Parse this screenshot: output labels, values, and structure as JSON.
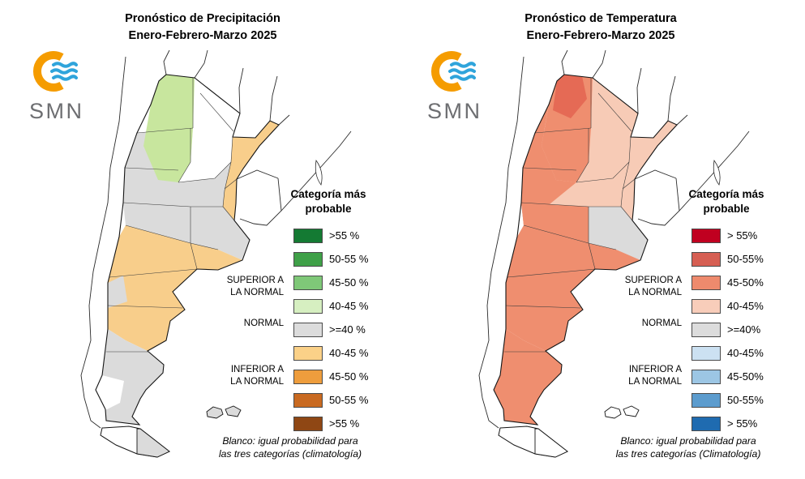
{
  "logo": {
    "text": "SMN",
    "orange": "#F59C00",
    "blue": "#2FA4DB",
    "gray": "#6D6E71"
  },
  "panels": [
    {
      "id": "precipitation",
      "title_line1": "Pronóstico de Precipitación",
      "title_line2": "Enero-Febrero-Marzo 2025",
      "legend": {
        "title_line1": "Categoría más",
        "title_line2": "probable",
        "superior": "SUPERIOR A\nLA NORMAL",
        "normal": "NORMAL",
        "inferior": "INFERIOR A\nLA NORMAL",
        "items": [
          {
            "label": ">55 %",
            "color": "#147A33"
          },
          {
            "label": "50-55 %",
            "color": "#3FA048"
          },
          {
            "label": "45-50 %",
            "color": "#7FC878"
          },
          {
            "label": "40-45 %",
            "color": "#D6EFC1"
          },
          {
            "label": ">=40 %",
            "color": "#DCDCDC"
          },
          {
            "label": "40-45 %",
            "color": "#FBD188"
          },
          {
            "label": "45-50 %",
            "color": "#EE9D3D"
          },
          {
            "label": "50-55 %",
            "color": "#C96A21"
          },
          {
            "label": ">55 %",
            "color": "#8F4714"
          }
        ]
      },
      "footnote_line1": "Blanco: igual probabilidad para",
      "footnote_line2": "las tres categorías (climatología)",
      "map_fills": {
        "ne_all": null,
        "center": "#DBDBDB",
        "ne_strip": "#F8CE8B",
        "nw": "#C8E69E",
        "nw_ext": null,
        "nw_top": null,
        "mid": null,
        "ba": null,
        "south_band": "#F8CE8B",
        "west_patch": "#DBDBDB",
        "far_south": "#DBDBDB",
        "far_south_white": "#FFFFFF",
        "tdf": "#DBDBDB",
        "malvinas": "#DBDBDB"
      }
    },
    {
      "id": "temperature",
      "title_line1": "Pronóstico de Temperatura",
      "title_line2": "Enero-Febrero-Marzo 2025",
      "legend": {
        "title_line1": "Categoría más",
        "title_line2": "probable",
        "superior": "SUPERIOR A\nLA NORMAL",
        "normal": "NORMAL",
        "inferior": "INFERIOR A\nLA NORMAL",
        "items": [
          {
            "label": "> 55%",
            "color": "#C00020"
          },
          {
            "label": "50-55%",
            "color": "#D65F53"
          },
          {
            "label": "45-50%",
            "color": "#EE8A6D"
          },
          {
            "label": "40-45%",
            "color": "#F8CDBA"
          },
          {
            "label": ">=40%",
            "color": "#DCDCDC"
          },
          {
            "label": "40-45%",
            "color": "#CCE1F2"
          },
          {
            "label": "45-50%",
            "color": "#9CC6E4"
          },
          {
            "label": "50-55%",
            "color": "#5C9CCE"
          },
          {
            "label": "> 55%",
            "color": "#1F6BB0"
          }
        ]
      },
      "footnote_line1": "Blanco: igual probabilidad para",
      "footnote_line2": "las tres categorías (Climatología)",
      "map_fills": {
        "ne_all": "#F7CBB6",
        "center": "#F7CBB6",
        "ne_strip": null,
        "nw": "#EF8E6F",
        "nw_ext": "#EF8E6F",
        "nw_top": "#E56A55",
        "mid": "#EF8E6F",
        "ba": "#DBDBDB",
        "south_band": "#EF8E6F",
        "west_patch": null,
        "far_south": "#EF8E6F",
        "far_south_white": null,
        "tdf": "#FFFFFF",
        "malvinas": "#FFFFFF"
      }
    }
  ]
}
